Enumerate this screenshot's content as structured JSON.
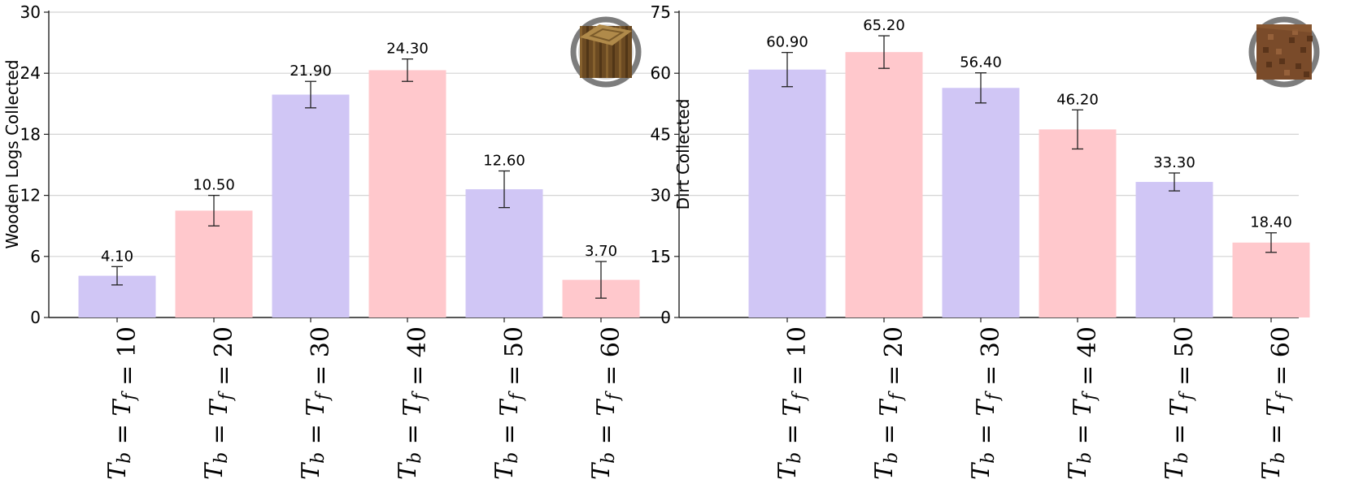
{
  "chart_data": [
    {
      "type": "bar",
      "categories": [
        "T_b = T_f = 10",
        "T_b = T_f = 20",
        "T_b = T_f = 30",
        "T_b = T_f = 40",
        "T_b = T_f = 50",
        "T_b = T_f = 60"
      ],
      "category_values": [
        "10",
        "20",
        "30",
        "40",
        "50",
        "60"
      ],
      "values": [
        4.1,
        10.5,
        21.9,
        24.3,
        12.6,
        3.7
      ],
      "value_labels": [
        "4.10",
        "10.50",
        "21.90",
        "24.30",
        "12.60",
        "3.70"
      ],
      "errors": [
        0.9,
        1.5,
        1.3,
        1.1,
        1.8,
        1.8
      ],
      "ylabel": "Wooden Logs Collected",
      "ylim": [
        0,
        30
      ],
      "yticks": [
        0,
        6,
        12,
        18,
        24,
        30
      ],
      "grid": true,
      "bar_colors": [
        "#d0c6f5",
        "#ffc8cc",
        "#d0c6f5",
        "#ffc8cc",
        "#d0c6f5",
        "#ffc8cc"
      ],
      "icon": "wooden-log-block-icon",
      "icon_position": "top-right"
    },
    {
      "type": "bar",
      "categories": [
        "T_b = T_f = 10",
        "T_b = T_f = 20",
        "T_b = T_f = 30",
        "T_b = T_f = 40",
        "T_b = T_f = 50",
        "T_b = T_f = 60"
      ],
      "category_values": [
        "10",
        "20",
        "30",
        "40",
        "50",
        "60"
      ],
      "values": [
        60.9,
        65.2,
        56.4,
        46.2,
        33.3,
        18.4
      ],
      "value_labels": [
        "60.90",
        "65.20",
        "56.40",
        "46.20",
        "33.30",
        "18.40"
      ],
      "errors": [
        4.2,
        4.0,
        3.7,
        4.8,
        2.2,
        2.4
      ],
      "ylabel": "Dirt Collected",
      "ylim": [
        0,
        75
      ],
      "yticks": [
        0,
        15,
        30,
        45,
        60,
        75
      ],
      "grid": true,
      "bar_colors": [
        "#d0c6f5",
        "#ffc8cc",
        "#d0c6f5",
        "#ffc8cc",
        "#d0c6f5",
        "#ffc8cc"
      ],
      "icon": "dirt-block-icon",
      "icon_position": "top-right"
    }
  ]
}
